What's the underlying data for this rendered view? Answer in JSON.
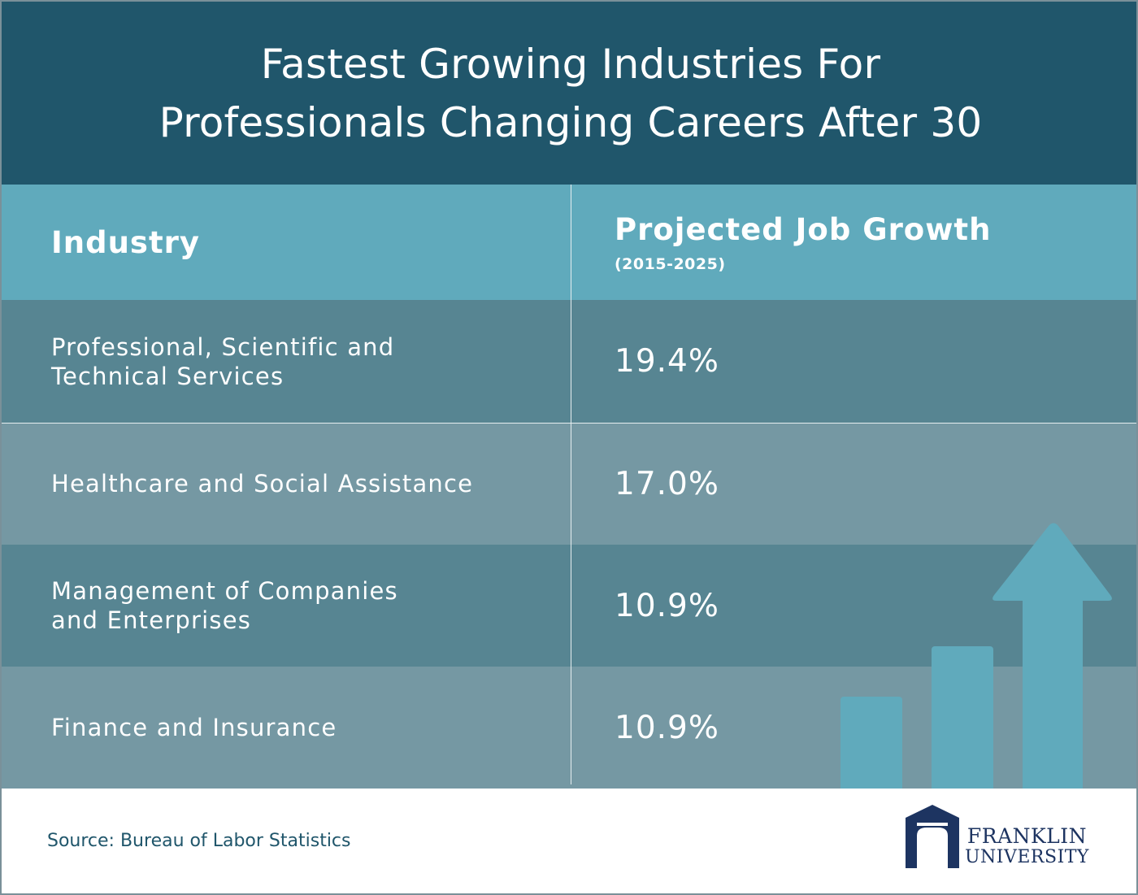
{
  "title": {
    "line1": "Fastest Growing Industries For",
    "line2": "Professionals Changing Careers After 30"
  },
  "table": {
    "header": {
      "industry": "Industry",
      "growth": "Projected Job Growth",
      "growth_period": "(2015-2025)"
    },
    "rows": [
      {
        "industry_line1": "Professional, Scientific and",
        "industry_line2": "Technical Services",
        "growth": "19.4%"
      },
      {
        "industry_line1": "Healthcare and Social Assistance",
        "industry_line2": "",
        "growth": "17.0%"
      },
      {
        "industry_line1": "Management of Companies",
        "industry_line2": "and Enterprises",
        "growth": "10.9%"
      },
      {
        "industry_line1": "Finance and Insurance",
        "industry_line2": "",
        "growth": "10.9%"
      }
    ]
  },
  "chart_data": {
    "type": "table",
    "columns": [
      "Industry",
      "Projected Job Growth (2015-2025)"
    ],
    "rows": [
      [
        "Professional, Scientific and Technical Services",
        "19.4%"
      ],
      [
        "Healthcare and Social Assistance",
        "17.0%"
      ],
      [
        "Management of Companies and Enterprises",
        "10.9%"
      ],
      [
        "Finance and Insurance",
        "10.9%"
      ]
    ],
    "values": [
      19.4,
      17.0,
      10.9,
      10.9
    ],
    "unit": "%"
  },
  "footer": {
    "source": "Source: Bureau of Labor Statistics",
    "logo_line1": "FRANKLIN",
    "logo_line2": "UNIVERSITY"
  },
  "colors": {
    "title_band": "#20566b",
    "header_row": "#60aabc",
    "row_dark": "#578592",
    "row_light": "#7598a3",
    "decor_bars": "#60aabc",
    "logo": "#1d3461"
  },
  "icons": {
    "decoration": "growth-bars-arrow-icon",
    "logo": "franklin-university-logo"
  }
}
